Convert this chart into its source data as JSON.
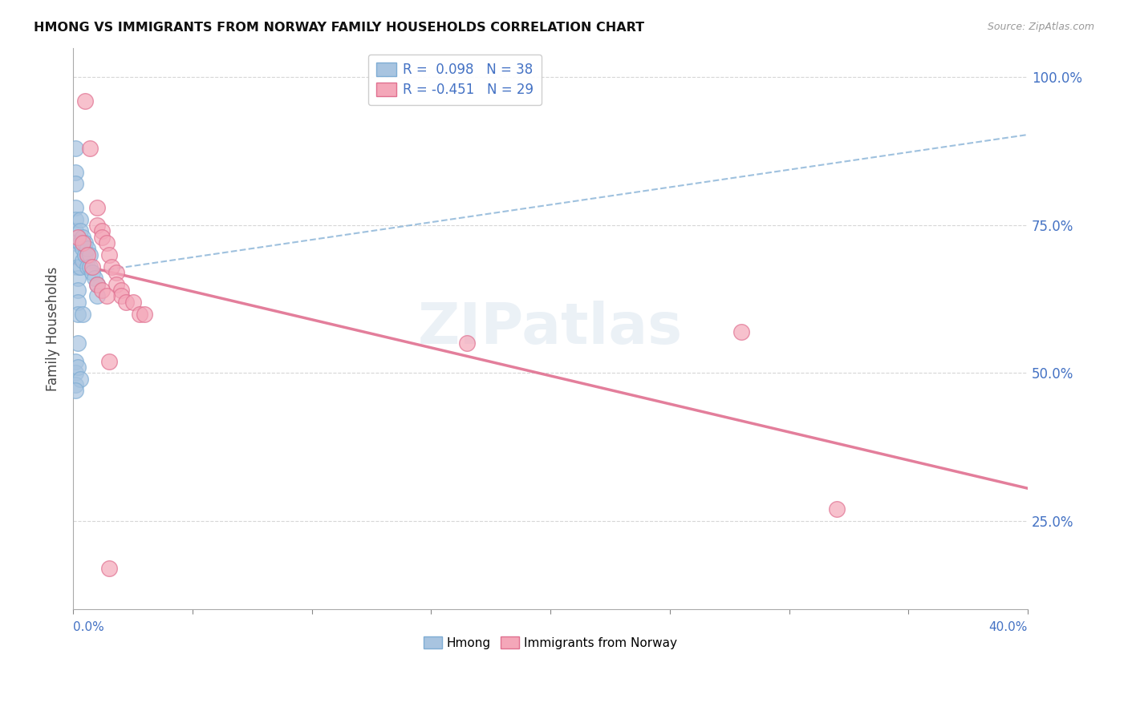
{
  "title": "HMONG VS IMMIGRANTS FROM NORWAY FAMILY HOUSEHOLDS CORRELATION CHART",
  "source": "Source: ZipAtlas.com",
  "ylabel": "Family Households",
  "xlim": [
    0.0,
    0.4
  ],
  "ylim": [
    0.1,
    1.05
  ],
  "yticks_right": [
    0.25,
    0.5,
    0.75,
    1.0
  ],
  "ytick_labels_right": [
    "25.0%",
    "50.0%",
    "75.0%",
    "100.0%"
  ],
  "grid_color": "#cccccc",
  "background_color": "#ffffff",
  "hmong_color": "#a8c4e0",
  "hmong_edge_color": "#7fadd4",
  "norway_color": "#f4a7b9",
  "norway_edge_color": "#e07090",
  "hmong_R": 0.098,
  "hmong_N": 38,
  "norway_R": -0.451,
  "norway_N": 29,
  "legend_color": "#4472c4",
  "watermark": "ZIPatlas",
  "watermark_color": "#c8d8e8",
  "hmong_x": [
    0.001,
    0.001,
    0.001,
    0.001,
    0.001,
    0.001,
    0.001,
    0.001,
    0.002,
    0.002,
    0.002,
    0.002,
    0.002,
    0.003,
    0.003,
    0.003,
    0.003,
    0.004,
    0.004,
    0.004,
    0.005,
    0.005,
    0.006,
    0.006,
    0.007,
    0.007,
    0.008,
    0.009,
    0.01,
    0.01,
    0.001,
    0.001,
    0.001,
    0.002,
    0.003,
    0.004,
    0.002,
    0.001
  ],
  "hmong_y": [
    0.88,
    0.84,
    0.82,
    0.78,
    0.76,
    0.74,
    0.72,
    0.7,
    0.68,
    0.66,
    0.64,
    0.62,
    0.6,
    0.76,
    0.74,
    0.72,
    0.68,
    0.73,
    0.71,
    0.69,
    0.72,
    0.7,
    0.71,
    0.68,
    0.7,
    0.68,
    0.67,
    0.66,
    0.65,
    0.63,
    0.52,
    0.5,
    0.48,
    0.51,
    0.49,
    0.6,
    0.55,
    0.47
  ],
  "norway_x": [
    0.005,
    0.007,
    0.01,
    0.01,
    0.012,
    0.012,
    0.014,
    0.015,
    0.016,
    0.018,
    0.018,
    0.02,
    0.02,
    0.022,
    0.025,
    0.028,
    0.03,
    0.002,
    0.004,
    0.006,
    0.008,
    0.01,
    0.012,
    0.014,
    0.28,
    0.32,
    0.015,
    0.165,
    0.015
  ],
  "norway_y": [
    0.96,
    0.88,
    0.78,
    0.75,
    0.74,
    0.73,
    0.72,
    0.7,
    0.68,
    0.67,
    0.65,
    0.64,
    0.63,
    0.62,
    0.62,
    0.6,
    0.6,
    0.73,
    0.72,
    0.7,
    0.68,
    0.65,
    0.64,
    0.63,
    0.57,
    0.27,
    0.52,
    0.55,
    0.17
  ]
}
